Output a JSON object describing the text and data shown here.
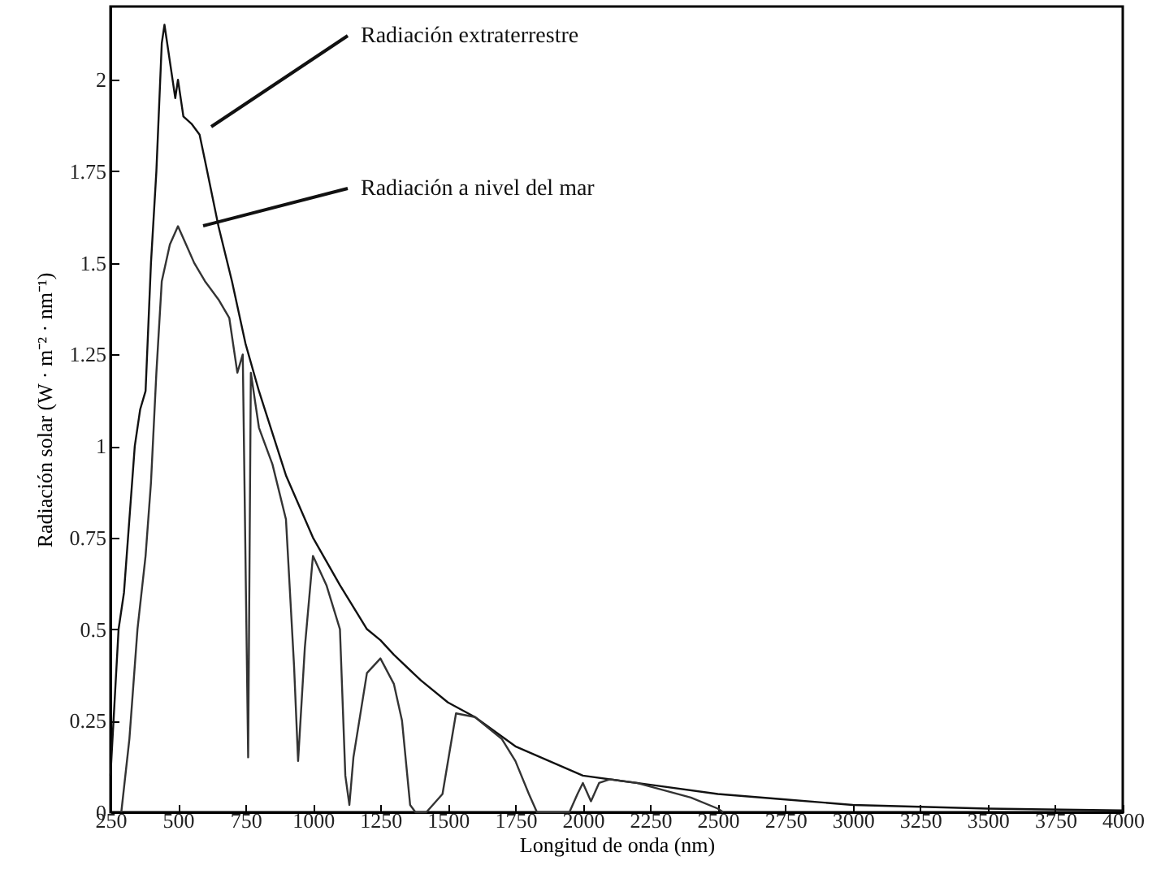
{
  "chart_data": {
    "type": "line",
    "xlabel": "Longitud de onda (nm)",
    "ylabel": "Radiación solar (W · m⁻² · nm⁻¹)",
    "xlim": [
      250,
      4000
    ],
    "ylim": [
      0,
      2.2
    ],
    "xticks": [
      250,
      500,
      750,
      1000,
      1250,
      1500,
      1750,
      2000,
      2250,
      2500,
      2750,
      3000,
      3250,
      3500,
      3750,
      4000
    ],
    "yticks": [
      0,
      0.25,
      0.5,
      0.75,
      1,
      1.25,
      1.5,
      1.75,
      2
    ],
    "grid": false,
    "marker": "none",
    "line_style": "solid",
    "annotations": [
      "Radiación extraterrestre",
      "Radiación a nivel del mar"
    ],
    "series": [
      {
        "color": "#111111",
        "x": [
          250,
          280,
          300,
          320,
          340,
          360,
          380,
          400,
          420,
          440,
          450,
          470,
          490,
          500,
          520,
          550,
          580,
          600,
          650,
          700,
          750,
          800,
          900,
          1000,
          1100,
          1200,
          1250,
          1300,
          1400,
          1500,
          1600,
          1750,
          2000,
          2250,
          2500,
          2750,
          3000,
          3500,
          4000
        ],
        "values": [
          0.1,
          0.5,
          0.6,
          0.8,
          1.0,
          1.1,
          1.15,
          1.5,
          1.75,
          2.1,
          2.15,
          2.05,
          1.95,
          2.0,
          1.9,
          1.88,
          1.85,
          1.78,
          1.6,
          1.45,
          1.28,
          1.15,
          0.92,
          0.75,
          0.62,
          0.5,
          0.47,
          0.43,
          0.36,
          0.3,
          0.26,
          0.18,
          0.1,
          0.075,
          0.05,
          0.035,
          0.02,
          0.01,
          0.005
        ]
      },
      {
        "color": "#333333",
        "x": [
          290,
          320,
          350,
          380,
          400,
          420,
          440,
          470,
          500,
          530,
          560,
          600,
          650,
          690,
          720,
          740,
          760,
          770,
          800,
          850,
          900,
          930,
          945,
          970,
          1000,
          1050,
          1100,
          1120,
          1135,
          1150,
          1200,
          1250,
          1300,
          1330,
          1360,
          1380,
          1420,
          1480,
          1530,
          1600,
          1650,
          1700,
          1750,
          1800,
          1830,
          1950,
          1980,
          2000,
          2030,
          2060,
          2100,
          2200,
          2300,
          2400,
          2500,
          2520
        ],
        "values": [
          0,
          0.2,
          0.5,
          0.7,
          0.9,
          1.2,
          1.45,
          1.55,
          1.6,
          1.55,
          1.5,
          1.45,
          1.4,
          1.35,
          1.2,
          1.25,
          0.15,
          1.2,
          1.05,
          0.95,
          0.8,
          0.4,
          0.14,
          0.45,
          0.7,
          0.62,
          0.5,
          0.1,
          0.02,
          0.15,
          0.38,
          0.42,
          0.35,
          0.25,
          0.02,
          0,
          0,
          0.05,
          0.27,
          0.26,
          0.23,
          0.2,
          0.14,
          0.05,
          0,
          0,
          0.05,
          0.08,
          0.03,
          0.08,
          0.09,
          0.08,
          0.06,
          0.04,
          0.01,
          0
        ]
      }
    ]
  }
}
